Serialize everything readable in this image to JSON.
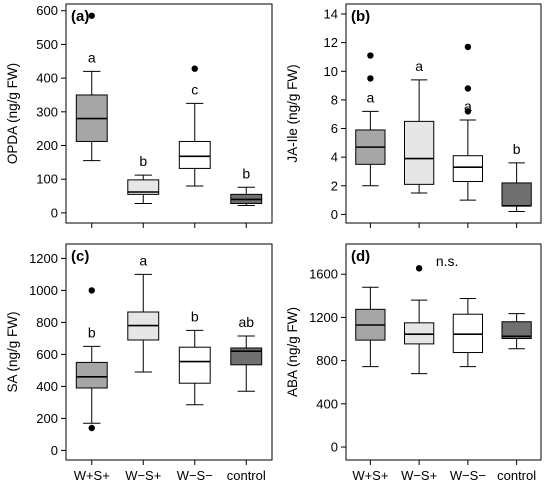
{
  "colors": {
    "W+S+": "#a6a6a6",
    "W-S+": "#e6e6e6",
    "W-S-": "#ffffff",
    "control": "#707070"
  },
  "chart_data": [
    {
      "type": "box",
      "panel_label": "(a)",
      "ylabel": "OPDA (ng/g FW)",
      "ylim": [
        -30,
        620
      ],
      "yticks": [
        "0",
        "100",
        "200",
        "300",
        "400",
        "500",
        "600"
      ],
      "categories": [
        "W+S+",
        "W−S+",
        "W−S−",
        "control"
      ],
      "show_categories": false,
      "boxes": [
        {
          "group": "W+S+",
          "min": 155,
          "q1": 212,
          "median": 280,
          "q3": 350,
          "max": 420,
          "outliers": [
            585
          ],
          "letter": "a"
        },
        {
          "group": "W-S+",
          "min": 28,
          "q1": 55,
          "median": 62,
          "q3": 98,
          "max": 112,
          "outliers": [],
          "letter": "b"
        },
        {
          "group": "W-S-",
          "min": 80,
          "q1": 132,
          "median": 168,
          "q3": 212,
          "max": 325,
          "outliers": [
            428
          ],
          "letter": "c"
        },
        {
          "group": "control",
          "min": 22,
          "q1": 28,
          "median": 40,
          "q3": 55,
          "max": 76,
          "outliers": [],
          "letter": "b"
        }
      ]
    },
    {
      "type": "box",
      "panel_label": "(b)",
      "ylabel": "JA-Ile (ng/g FW)",
      "ylim": [
        -0.6,
        14.7
      ],
      "yticks": [
        "0",
        "2",
        "4",
        "6",
        "8",
        "10",
        "12",
        "14"
      ],
      "categories": [
        "W+S+",
        "W−S+",
        "W−S−",
        "control"
      ],
      "show_categories": false,
      "boxes": [
        {
          "group": "W+S+",
          "min": 2.0,
          "q1": 3.5,
          "median": 4.7,
          "q3": 5.9,
          "max": 7.2,
          "outliers": [
            9.5,
            11.1
          ],
          "letter": "a"
        },
        {
          "group": "W-S+",
          "min": 1.5,
          "q1": 2.1,
          "median": 3.9,
          "q3": 6.5,
          "max": 9.4,
          "outliers": [],
          "letter": "a"
        },
        {
          "group": "W-S-",
          "min": 1.0,
          "q1": 2.3,
          "median": 3.3,
          "q3": 4.1,
          "max": 6.6,
          "outliers": [
            7.2,
            8.8,
            11.7
          ],
          "letter": "a"
        },
        {
          "group": "control",
          "min": 0.2,
          "q1": 0.6,
          "median": 0.6,
          "q3": 2.2,
          "max": 3.6,
          "outliers": [],
          "letter": "b"
        }
      ]
    },
    {
      "type": "box",
      "panel_label": "(c)",
      "ylabel": "SA (ng/g FW)",
      "ylim": [
        -60,
        1290
      ],
      "yticks": [
        "0",
        "200",
        "400",
        "600",
        "800",
        "1000",
        "1200"
      ],
      "categories": [
        "W+S+",
        "W−S+",
        "W−S−",
        "control"
      ],
      "show_categories": true,
      "boxes": [
        {
          "group": "W+S+",
          "min": 170,
          "q1": 390,
          "median": 460,
          "q3": 550,
          "max": 650,
          "outliers": [
            140,
            1000
          ],
          "letter": "b"
        },
        {
          "group": "W-S+",
          "min": 490,
          "q1": 690,
          "median": 780,
          "q3": 865,
          "max": 1100,
          "outliers": [],
          "letter": "a"
        },
        {
          "group": "W-S-",
          "min": 285,
          "q1": 420,
          "median": 555,
          "q3": 645,
          "max": 750,
          "outliers": [],
          "letter": "b"
        },
        {
          "group": "control",
          "min": 370,
          "q1": 535,
          "median": 620,
          "q3": 640,
          "max": 715,
          "outliers": [],
          "letter": "ab"
        }
      ]
    },
    {
      "type": "box",
      "panel_label": "(d)",
      "ylabel": "ABA (ng/g FW)",
      "ylim": [
        -120,
        1880
      ],
      "yticks": [
        "0",
        "400",
        "800",
        "1200",
        "1600"
      ],
      "categories": [
        "W+S+",
        "W−S+",
        "W−S−",
        "control"
      ],
      "show_categories": true,
      "annotation": "n.s.",
      "boxes": [
        {
          "group": "W+S+",
          "min": 745,
          "q1": 990,
          "median": 1130,
          "q3": 1275,
          "max": 1480,
          "outliers": [],
          "letter": ""
        },
        {
          "group": "W-S+",
          "min": 680,
          "q1": 955,
          "median": 1045,
          "q3": 1150,
          "max": 1360,
          "outliers": [
            1655
          ],
          "letter": ""
        },
        {
          "group": "W-S-",
          "min": 745,
          "q1": 875,
          "median": 1045,
          "q3": 1230,
          "max": 1375,
          "outliers": [],
          "letter": ""
        },
        {
          "group": "control",
          "min": 910,
          "q1": 1005,
          "median": 1025,
          "q3": 1160,
          "max": 1235,
          "outliers": [],
          "letter": ""
        }
      ]
    }
  ]
}
